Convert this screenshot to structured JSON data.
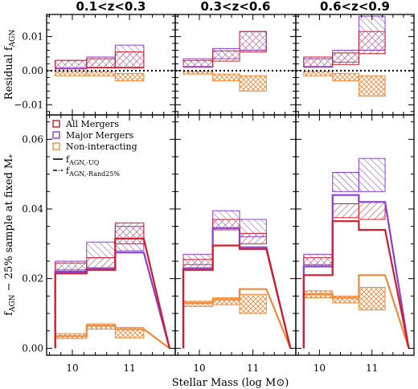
{
  "chart_data": {
    "type": "bar",
    "xlabel": "Stellar Mass (log M⊙)",
    "xlim": [
      9.55,
      11.8
    ],
    "xticks": [
      10,
      11
    ],
    "bin_edges": [
      9.7,
      10.25,
      10.75,
      11.25,
      11.7
    ],
    "colors": {
      "all": "#d01c2b",
      "major": "#8a3ed8",
      "non": "#f08a3a"
    },
    "legend": {
      "items": [
        "All Mergers",
        "Major Mergers",
        "Non-interacting"
      ],
      "line_solid_main": "f",
      "line_solid_sub": "AGN,-UQ",
      "line_dash_main": "f",
      "line_dash_sub": "AGN,-Rand25%"
    },
    "top_ylabel": "Residual f",
    "top_ylabel_sub": "AGN",
    "bottom_ylabel": "f",
    "bottom_ylabel_sub": "AGN",
    "bottom_ylabel_rest": " − 25% sample at fixed M",
    "bottom_ylabel_star": "*",
    "top_ylim": [
      -0.013,
      0.0165
    ],
    "top_yticks": [
      -0.01,
      0.0,
      0.01
    ],
    "top_ytick_labels": [
      "−0.01",
      "0.00",
      "0.01"
    ],
    "bottom_ylim": [
      -0.002,
      0.067
    ],
    "bottom_yticks": [
      0.0,
      0.02,
      0.04,
      0.06
    ],
    "bottom_ytick_labels": [
      "0.00",
      "0.02",
      "0.04",
      "0.06"
    ],
    "panels": [
      {
        "title": "0.1<z<0.3",
        "residual": {
          "all": [
            [
              0.0005,
              0.003
            ],
            [
              0.0008,
              0.0035
            ],
            [
              0.0008,
              0.0055
            ]
          ],
          "major": [
            [
              0.0008,
              0.003
            ],
            [
              0.001,
              0.004
            ],
            [
              0.001,
              0.0075
            ]
          ],
          "non": [
            [
              -0.0015,
              -0.0003
            ],
            [
              -0.0015,
              -0.0003
            ],
            [
              -0.003,
              -0.0008
            ]
          ]
        },
        "line_all": [
          0.0215,
          0.0225,
          0.0315
        ],
        "line_major": [
          0.022,
          0.023,
          0.0275
        ],
        "line_non": [
          0.0035,
          0.0065,
          0.0055
        ],
        "band_all": [
          [
            0.022,
            0.0245
          ],
          [
            0.0225,
            0.026
          ],
          [
            0.03,
            0.036
          ]
        ],
        "band_major": [
          [
            0.0225,
            0.025
          ],
          [
            0.026,
            0.0305
          ],
          [
            0.028,
            0.035
          ]
        ],
        "band_non": [
          [
            0.0028,
            0.0042
          ],
          [
            0.0055,
            0.007
          ],
          [
            0.003,
            0.006
          ]
        ]
      },
      {
        "title": "0.3<z<0.6",
        "residual": {
          "all": [
            [
              0.001,
              0.003
            ],
            [
              0.0028,
              0.0058
            ],
            [
              0.0055,
              0.0115
            ]
          ],
          "major": [
            [
              0.0012,
              0.0035
            ],
            [
              0.0035,
              0.0065
            ],
            [
              0.006,
              0.0115
            ]
          ],
          "non": [
            [
              -0.001,
              -0.0003
            ],
            [
              -0.003,
              -0.001
            ],
            [
              -0.006,
              -0.0015
            ]
          ]
        },
        "line_all": [
          0.0225,
          0.0295,
          0.0285
        ],
        "line_major": [
          0.023,
          0.0345,
          0.029
        ],
        "line_non": [
          0.013,
          0.014,
          0.017
        ],
        "band_all": [
          [
            0.023,
            0.0255
          ],
          [
            0.034,
            0.037
          ],
          [
            0.03,
            0.033
          ]
        ],
        "band_major": [
          [
            0.024,
            0.027
          ],
          [
            0.0345,
            0.0395
          ],
          [
            0.032,
            0.037
          ]
        ],
        "band_non": [
          [
            0.012,
            0.0135
          ],
          [
            0.0125,
            0.0145
          ],
          [
            0.01,
            0.0155
          ]
        ]
      },
      {
        "title": "0.6<z<0.9",
        "residual": {
          "all": [
            [
              0.001,
              0.004
            ],
            [
              0.0018,
              0.0052
            ],
            [
              0.005,
              0.0115
            ]
          ],
          "major": [
            [
              0.0012,
              0.0035
            ],
            [
              0.0025,
              0.006
            ],
            [
              0.006,
              0.016
            ]
          ],
          "non": [
            [
              -0.0015,
              -0.0003
            ],
            [
              -0.003,
              -0.0008
            ],
            [
              -0.0075,
              -0.0015
            ]
          ]
        },
        "line_all": [
          0.021,
          0.0365,
          0.034
        ],
        "line_major": [
          0.0235,
          0.044,
          0.042
        ],
        "line_non": [
          0.0155,
          0.0145,
          0.021
        ],
        "band_all": [
          [
            0.0235,
            0.026
          ],
          [
            0.0375,
            0.0415
          ],
          [
            0.037,
            0.042
          ]
        ],
        "band_major": [
          [
            0.024,
            0.027
          ],
          [
            0.045,
            0.0505
          ],
          [
            0.045,
            0.0545
          ]
        ],
        "band_non": [
          [
            0.0145,
            0.0165
          ],
          [
            0.013,
            0.015
          ],
          [
            0.011,
            0.0175
          ]
        ]
      }
    ]
  }
}
